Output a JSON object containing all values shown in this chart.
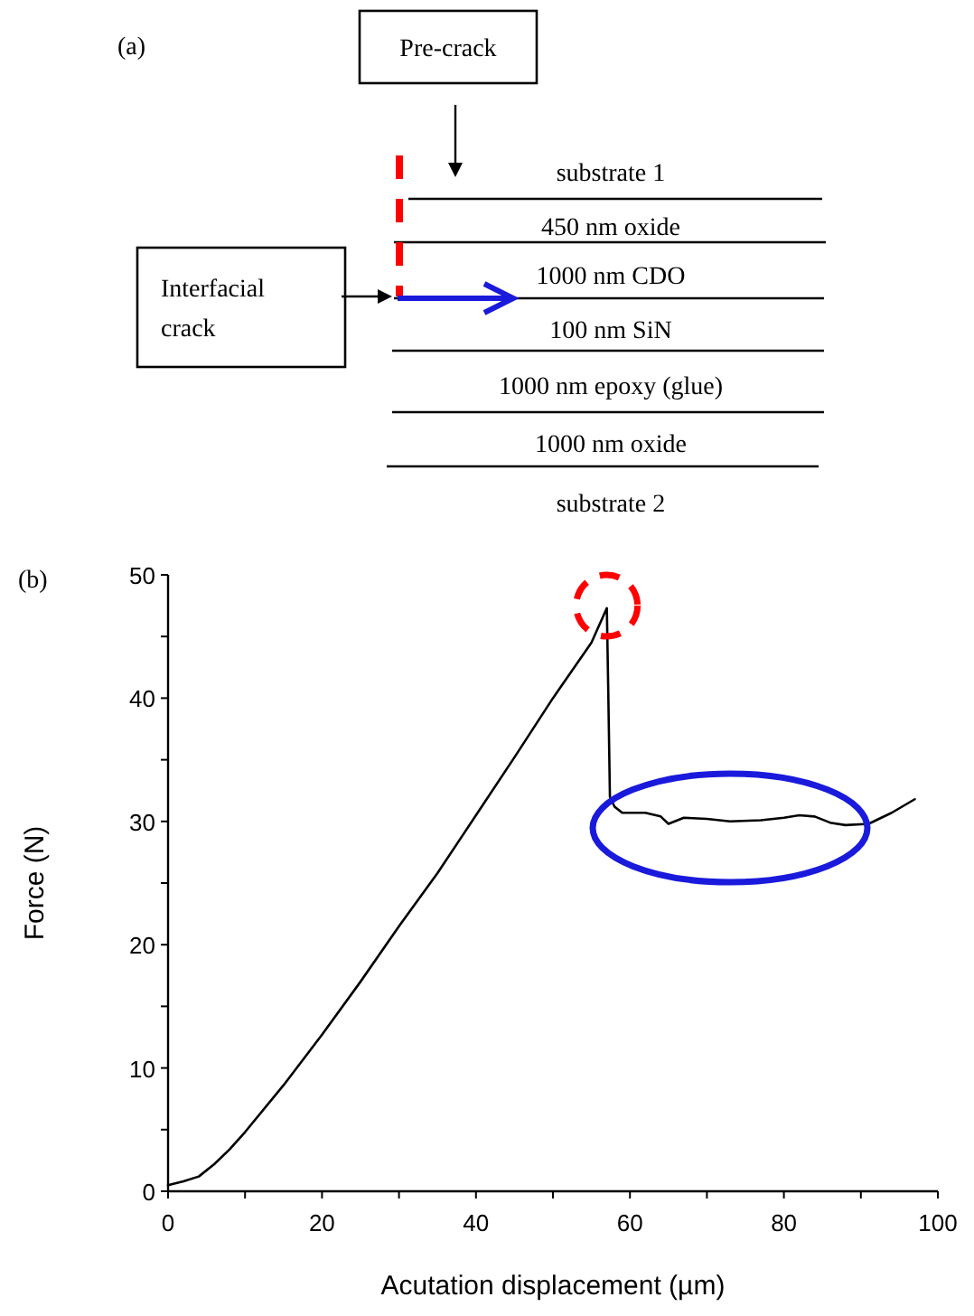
{
  "chart_data": [
    {
      "type": "other",
      "annotations": [
        "(a)",
        "Pre-crack",
        "Interfacial crack",
        "substrate 1",
        "450 nm oxide",
        "1000 nm CDO",
        "100 nm SiN",
        "1000 nm epoxy (glue)",
        "1000 nm oxide",
        "substrate 2"
      ]
    },
    {
      "type": "line",
      "annotations": [
        "(b)"
      ],
      "xlabel": "Acutation displacement (µm)",
      "ylabel": "Force (N)",
      "xlim": [
        0,
        100
      ],
      "ylim": [
        0,
        50
      ],
      "xticks": [
        0,
        {
          "value": 10,
          "label": null
        },
        20,
        {
          "value": 30,
          "label": null
        },
        40,
        {
          "value": 50,
          "label": null
        },
        60,
        {
          "value": 70,
          "label": null
        },
        80,
        {
          "value": 90,
          "label": null
        },
        100
      ],
      "yticks": [
        0,
        {
          "value": 5,
          "label": null
        },
        10,
        {
          "value": 15,
          "label": null
        },
        20,
        {
          "value": 25,
          "label": null
        },
        30,
        {
          "value": 35,
          "label": null
        },
        40,
        {
          "value": 45,
          "label": null
        },
        50
      ],
      "marker": "none",
      "line_style": "solid",
      "series": [
        {
          "color": "#000000",
          "x": [
            0,
            2,
            4,
            6,
            8,
            10,
            15,
            20,
            25,
            30,
            35,
            40,
            45,
            50,
            55,
            57,
            57.2,
            57.4,
            58,
            59,
            62,
            64,
            65,
            67,
            70,
            73,
            77,
            80,
            82,
            84,
            86,
            88,
            91,
            94,
            97
          ],
          "values": [
            0.5,
            0.8,
            1.2,
            2.2,
            3.4,
            4.8,
            8.6,
            12.7,
            17,
            21.5,
            25.8,
            30.5,
            35.2,
            40,
            44.5,
            47.3,
            40,
            32,
            31.2,
            30.7,
            30.7,
            30.4,
            29.8,
            30.3,
            30.2,
            30,
            30.1,
            30.3,
            30.5,
            30.4,
            29.9,
            29.7,
            29.8,
            30.7,
            31.8
          ]
        }
      ]
    }
  ]
}
